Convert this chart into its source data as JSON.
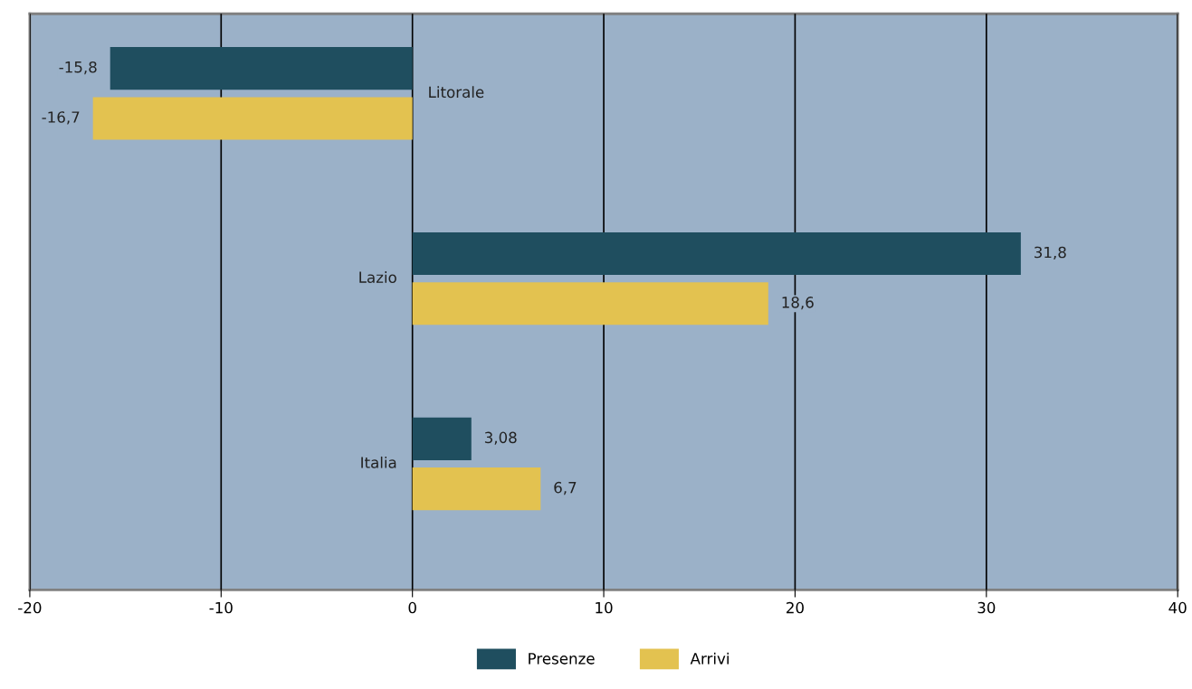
{
  "chart_data": {
    "type": "bar",
    "orientation": "horizontal",
    "categories": [
      "Litorale",
      "Lazio",
      "Italia"
    ],
    "series": [
      {
        "name": "Presenze",
        "color": "#1f4e5f",
        "values": [
          -15.8,
          31.8,
          3.08
        ],
        "value_labels": [
          "-15,8",
          "31,8",
          "3,08"
        ]
      },
      {
        "name": "Arrivi",
        "color": "#e3c250",
        "values": [
          -16.7,
          18.6,
          6.7
        ],
        "value_labels": [
          "-16,7",
          "18,6",
          "6,7"
        ]
      }
    ],
    "xlim": [
      -20,
      40
    ],
    "xticks": [
      -20,
      -10,
      0,
      10,
      20,
      30,
      40
    ],
    "grid": "x",
    "legend": "bottom"
  }
}
